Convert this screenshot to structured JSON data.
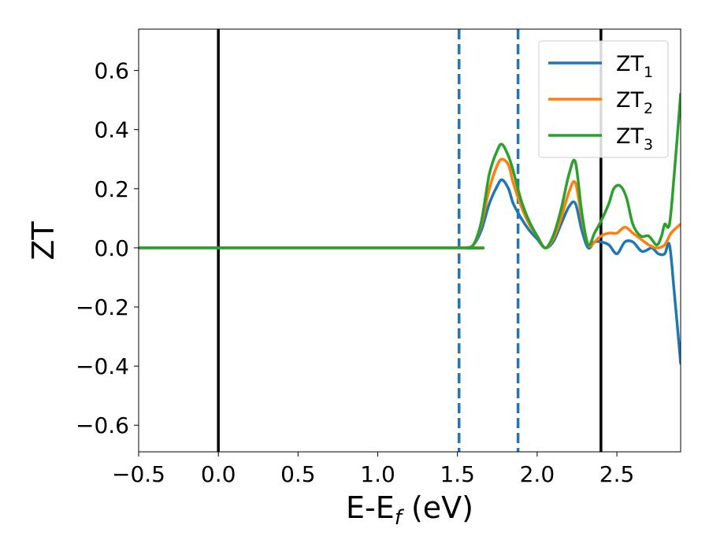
{
  "chart_data": {
    "type": "line",
    "xlabel": {
      "main": "E-E",
      "sub": "f",
      "suffix": " (eV)"
    },
    "ylabel": "ZT",
    "xlim": [
      -0.5,
      2.9
    ],
    "ylim": [
      -0.69,
      0.74
    ],
    "x_ticks": [
      -0.5,
      0.0,
      0.5,
      1.0,
      1.5,
      2.0,
      2.5
    ],
    "x_tick_labels": [
      "−0.5",
      "0.0",
      "0.5",
      "1.0",
      "1.5",
      "2.0",
      "2.5"
    ],
    "y_ticks": [
      0.6,
      0.4,
      0.2,
      0.0,
      -0.2,
      -0.4,
      -0.6
    ],
    "y_tick_labels": [
      "0.6",
      "0.4",
      "0.2",
      "0.0",
      "−0.2",
      "−0.4",
      "−0.6"
    ],
    "grid": false,
    "legend_position": "top-right",
    "vertical_lines": [
      {
        "x": 0.0,
        "style": "solid",
        "color": "#000000"
      },
      {
        "x": 2.4,
        "style": "solid",
        "color": "#000000"
      },
      {
        "x": 1.51,
        "style": "dashed",
        "color": "#1f77b4"
      },
      {
        "x": 1.88,
        "style": "dashed",
        "color": "#1f77b4"
      }
    ],
    "series": [
      {
        "name": {
          "main": "ZT",
          "sub": "1"
        },
        "color": "#1f77b4",
        "x": [
          -0.5,
          1.5,
          1.55,
          1.6,
          1.65,
          1.7,
          1.75,
          1.78,
          1.82,
          1.85,
          1.9,
          1.95,
          2.0,
          2.05,
          2.1,
          2.15,
          2.2,
          2.24,
          2.28,
          2.32,
          2.36,
          2.4,
          2.45,
          2.5,
          2.55,
          2.6,
          2.65,
          2.68,
          2.72,
          2.76,
          2.8,
          2.83,
          2.86,
          2.9
        ],
        "y": [
          0.0,
          0.0,
          0.0,
          0.01,
          0.06,
          0.15,
          0.21,
          0.23,
          0.2,
          0.15,
          0.1,
          0.06,
          0.03,
          0.0,
          0.02,
          0.08,
          0.14,
          0.15,
          0.06,
          0.0,
          0.02,
          0.02,
          0.01,
          -0.02,
          0.02,
          0.02,
          -0.01,
          -0.01,
          0.0,
          -0.02,
          -0.02,
          0.01,
          -0.15,
          -0.39
        ]
      },
      {
        "name": {
          "main": "ZT",
          "sub": "2"
        },
        "color": "#ff7f0e",
        "x": [
          -0.5,
          1.5,
          1.55,
          1.6,
          1.65,
          1.7,
          1.75,
          1.78,
          1.82,
          1.85,
          1.9,
          1.95,
          2.0,
          2.05,
          2.1,
          2.15,
          2.2,
          2.24,
          2.28,
          2.32,
          2.36,
          2.4,
          2.45,
          2.5,
          2.55,
          2.6,
          2.65,
          2.7,
          2.75,
          2.8,
          2.84,
          2.9
        ],
        "y": [
          0.0,
          0.0,
          0.0,
          0.01,
          0.08,
          0.2,
          0.28,
          0.3,
          0.28,
          0.22,
          0.14,
          0.08,
          0.04,
          0.0,
          0.03,
          0.1,
          0.19,
          0.22,
          0.1,
          0.01,
          0.02,
          0.04,
          0.05,
          0.05,
          0.07,
          0.05,
          0.03,
          0.01,
          0.0,
          0.01,
          0.05,
          0.08
        ]
      },
      {
        "name": {
          "main": "ZT",
          "sub": "3"
        },
        "color": "#2ca02c",
        "x": [
          -0.5,
          1.5,
          1.55,
          1.6,
          1.65,
          1.7,
          1.75,
          1.78,
          1.82,
          1.85,
          1.9,
          1.95,
          2.0,
          2.05,
          2.1,
          2.15,
          2.2,
          2.24,
          2.28,
          2.32,
          2.36,
          2.4,
          2.45,
          2.48,
          2.52,
          2.56,
          2.6,
          2.65,
          2.7,
          2.75,
          2.78,
          2.8,
          2.83,
          2.86,
          2.9
        ],
        "y": [
          0.0,
          0.0,
          0.0,
          0.01,
          0.09,
          0.25,
          0.33,
          0.35,
          0.31,
          0.26,
          0.16,
          0.09,
          0.04,
          0.0,
          0.04,
          0.13,
          0.25,
          0.29,
          0.12,
          0.01,
          0.05,
          0.09,
          0.15,
          0.2,
          0.21,
          0.17,
          0.08,
          0.04,
          0.04,
          0.01,
          0.04,
          0.08,
          0.08,
          0.25,
          0.52
        ]
      }
    ]
  }
}
